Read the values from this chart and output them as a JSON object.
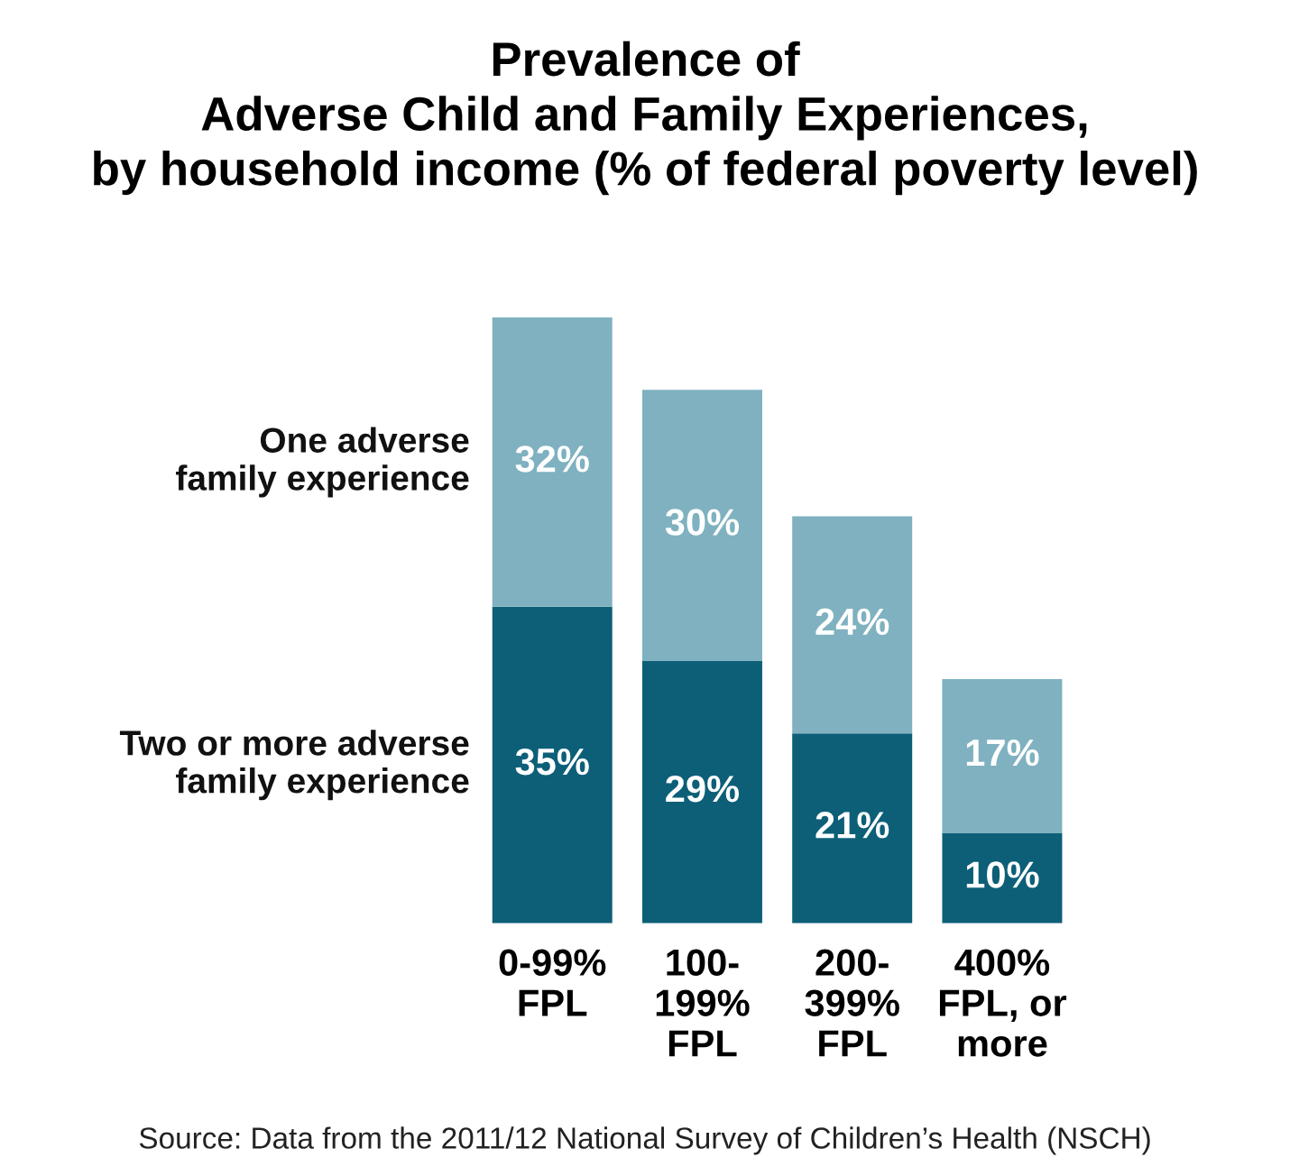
{
  "chart_data": {
    "type": "bar",
    "stacked": true,
    "title": "Prevalence of\nAdverse Child and Family Experiences,\nby household income (% of federal poverty level)",
    "categories": [
      "0-99%\nFPL",
      "100-\n199%\nFPL",
      "200-\n399%\nFPL",
      "400%\nFPL, or\nmore"
    ],
    "series": [
      {
        "name": "Two or more adverse\nfamily experience",
        "color": "#0d5f78",
        "values": [
          35,
          29,
          21,
          10
        ],
        "value_labels": [
          "35%",
          "29%",
          "21%",
          "10%"
        ]
      },
      {
        "name": "One adverse\nfamily experience",
        "color": "#7fb1c0",
        "values": [
          32,
          30,
          24,
          17
        ],
        "value_labels": [
          "32%",
          "30%",
          "24%",
          "17%"
        ]
      }
    ],
    "ylim": [
      0,
      67
    ],
    "tick_labels": "x",
    "grid": false,
    "legend": false,
    "annotations": [
      "Source: Data from the 2011/12 National Survey of Children’s Health (NSCH)"
    ]
  }
}
